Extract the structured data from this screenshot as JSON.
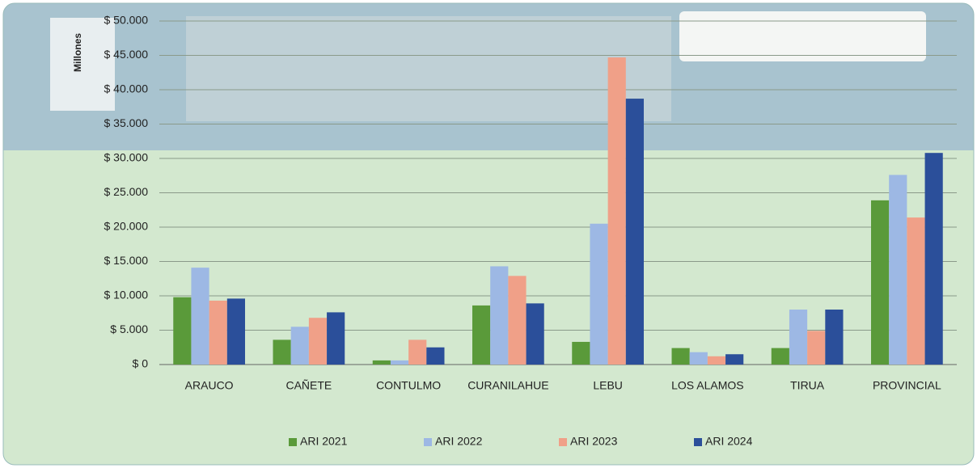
{
  "chart_data": {
    "type": "bar",
    "y_axis_label": "Millones",
    "categories": [
      "ARAUCO",
      "CAÑETE",
      "CONTULMO",
      "CURANILAHUE",
      "LEBU",
      "LOS ALAMOS",
      "TIRUA",
      "PROVINCIAL"
    ],
    "series": [
      {
        "name": "ARI 2021",
        "color": "#5a9a3a",
        "values": [
          9800,
          3600,
          600,
          8600,
          3300,
          2400,
          2400,
          23900
        ]
      },
      {
        "name": "ARI 2022",
        "color": "#9db8e4",
        "values": [
          14100,
          5500,
          600,
          14300,
          20500,
          1800,
          8000,
          27600
        ]
      },
      {
        "name": "ARI 2023",
        "color": "#f0a088",
        "values": [
          9300,
          6800,
          3600,
          12900,
          44700,
          1200,
          4900,
          21400
        ]
      },
      {
        "name": "ARI 2024",
        "color": "#2b4f9a",
        "values": [
          9600,
          7600,
          2500,
          8900,
          38700,
          1500,
          8000,
          30800
        ]
      }
    ],
    "ylim": [
      0,
      50000
    ],
    "yticks": [
      {
        "value": 0,
        "label": "$ 0"
      },
      {
        "value": 5000,
        "label": "$ 5.000"
      },
      {
        "value": 10000,
        "label": "$ 10.000"
      },
      {
        "value": 15000,
        "label": "$ 15.000"
      },
      {
        "value": 20000,
        "label": "$ 20.000"
      },
      {
        "value": 25000,
        "label": "$ 25.000"
      },
      {
        "value": 30000,
        "label": "$ 30.000"
      },
      {
        "value": 35000,
        "label": "$ 35.000"
      },
      {
        "value": 40000,
        "label": "$ 40.000"
      },
      {
        "value": 45000,
        "label": "$ 45.000"
      },
      {
        "value": 50000,
        "label": "$ 50.000"
      }
    ],
    "grid": true,
    "legend": "bottom"
  }
}
